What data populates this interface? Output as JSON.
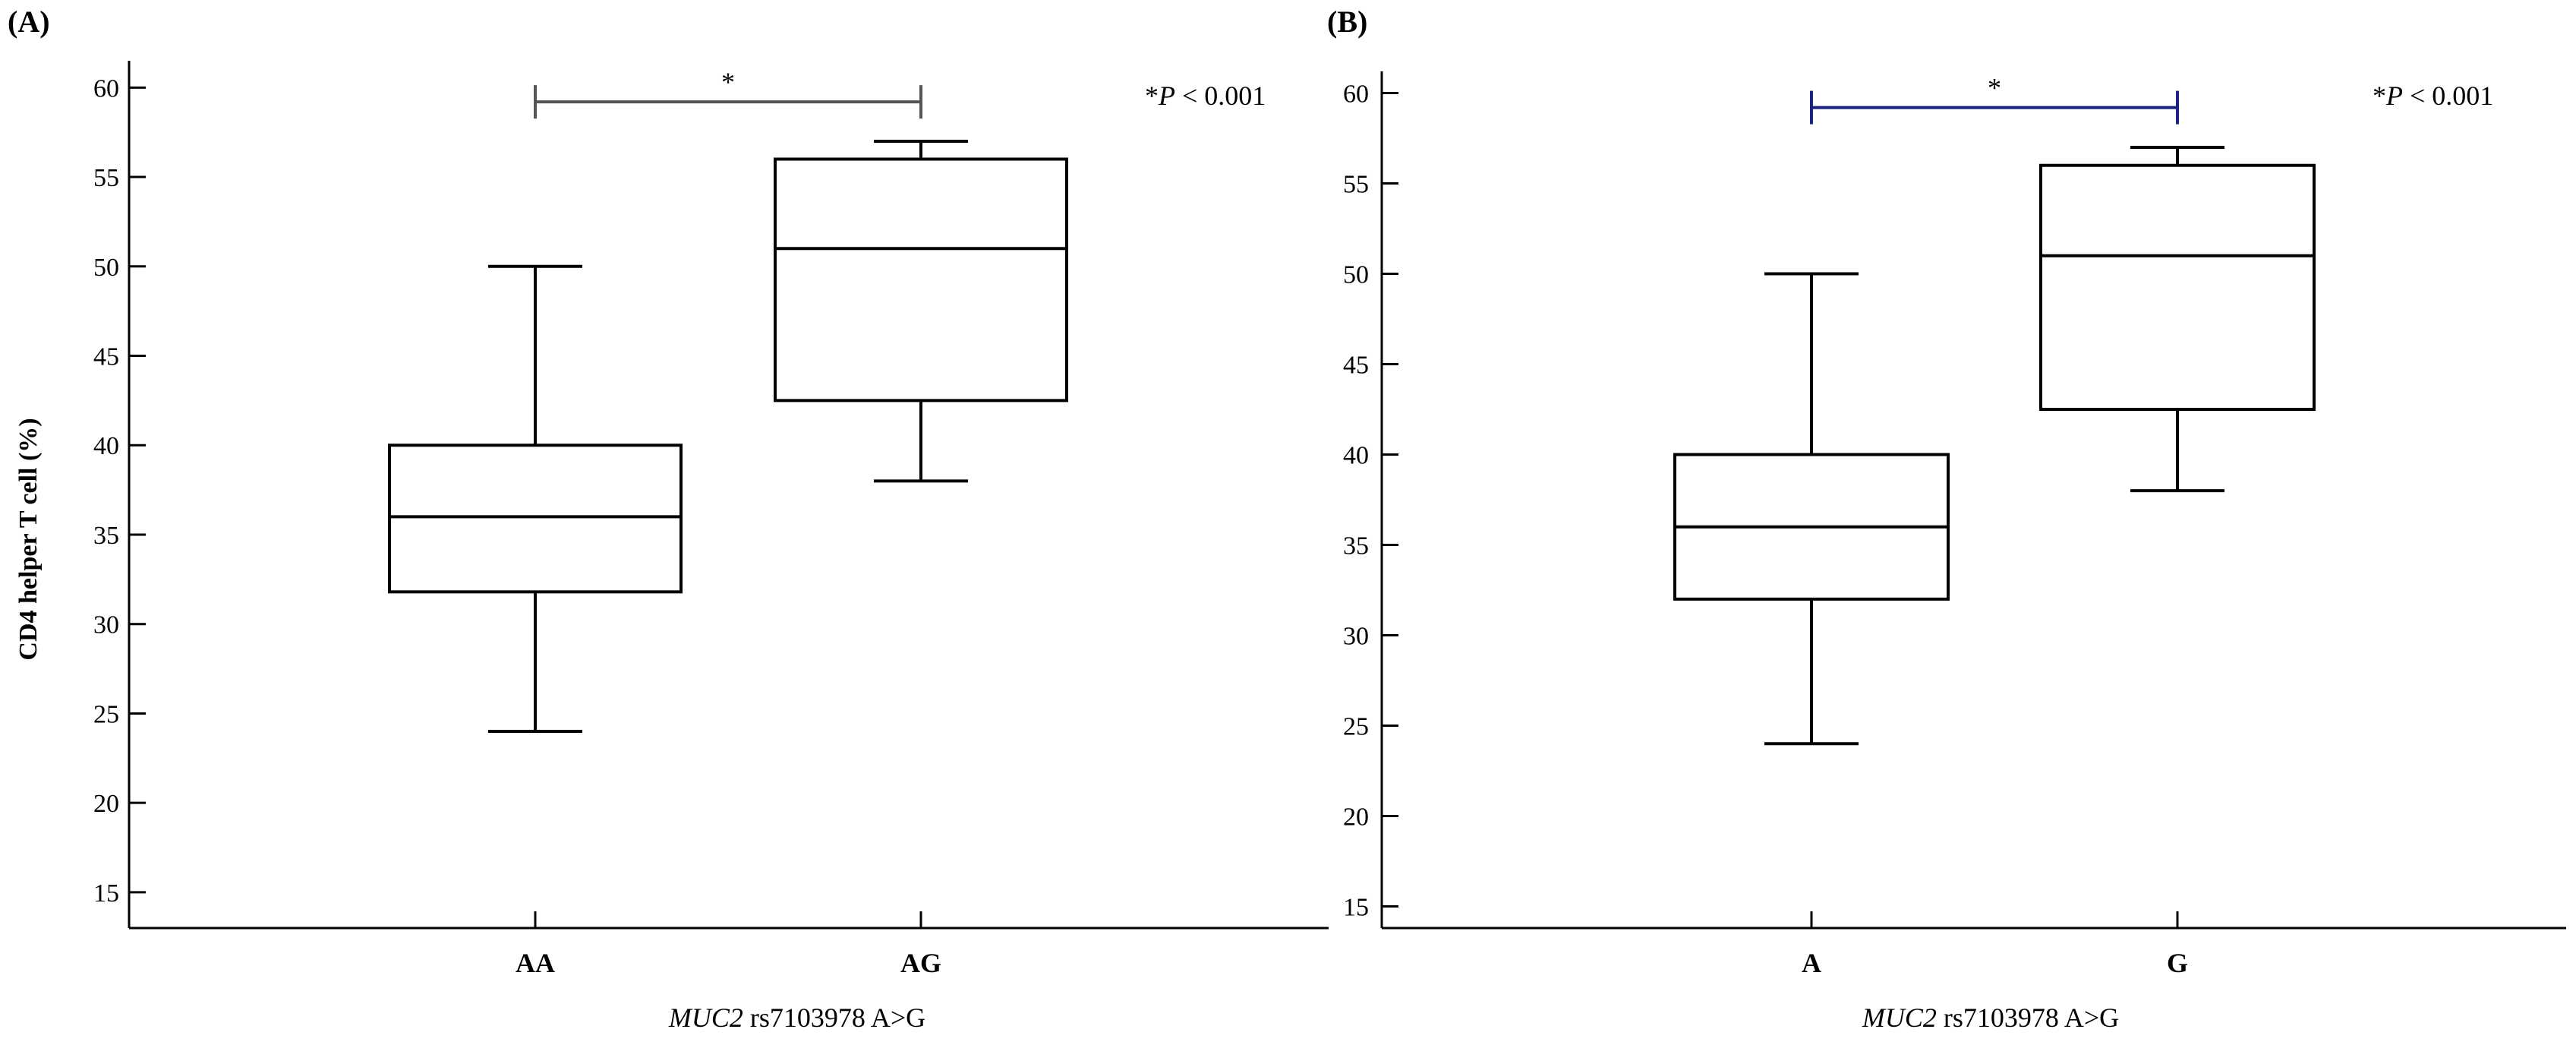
{
  "chart_data": [
    {
      "type": "box",
      "panel_label": "(A)",
      "ylabel": "CD4 helper T cell (%)",
      "xlabel_italic": "MUC2",
      "xlabel_rest": " rs7103978 A>G",
      "ylim": [
        13,
        61.5
      ],
      "yticks": [
        15,
        20,
        25,
        30,
        35,
        40,
        45,
        50,
        55,
        60
      ],
      "grid": false,
      "categories": [
        "AA",
        "AG"
      ],
      "boxes": [
        {
          "category": "AA",
          "min": 24,
          "q1": 31.8,
          "median": 36,
          "q3": 40,
          "max": 50
        },
        {
          "category": "AG",
          "min": 38,
          "q1": 42.5,
          "median": 51,
          "q3": 56,
          "max": 57
        }
      ],
      "significance": {
        "from": "AA",
        "to": "AG",
        "y": 59.2,
        "marker": "*",
        "bracket_color": "#555555"
      },
      "annotation": {
        "star": "*",
        "italic": "P",
        "rest": " < 0.001"
      }
    },
    {
      "type": "box",
      "panel_label": "(B)",
      "ylabel": "",
      "xlabel_italic": "MUC2",
      "xlabel_rest": " rs7103978 A>G",
      "ylim": [
        13.8,
        61.2
      ],
      "yticks": [
        15,
        20,
        25,
        30,
        35,
        40,
        45,
        50,
        55,
        60
      ],
      "grid": false,
      "categories": [
        "A",
        "G"
      ],
      "boxes": [
        {
          "category": "A",
          "min": 24,
          "q1": 32,
          "median": 36,
          "q3": 40,
          "max": 50
        },
        {
          "category": "G",
          "min": 38,
          "q1": 42.5,
          "median": 51,
          "q3": 56,
          "max": 57
        }
      ],
      "significance": {
        "from": "A",
        "to": "G",
        "y": 59.2,
        "marker": "*",
        "bracket_color": "#1a237e"
      },
      "annotation": {
        "star": "*",
        "italic": "P",
        "rest": " < 0.001"
      }
    }
  ]
}
